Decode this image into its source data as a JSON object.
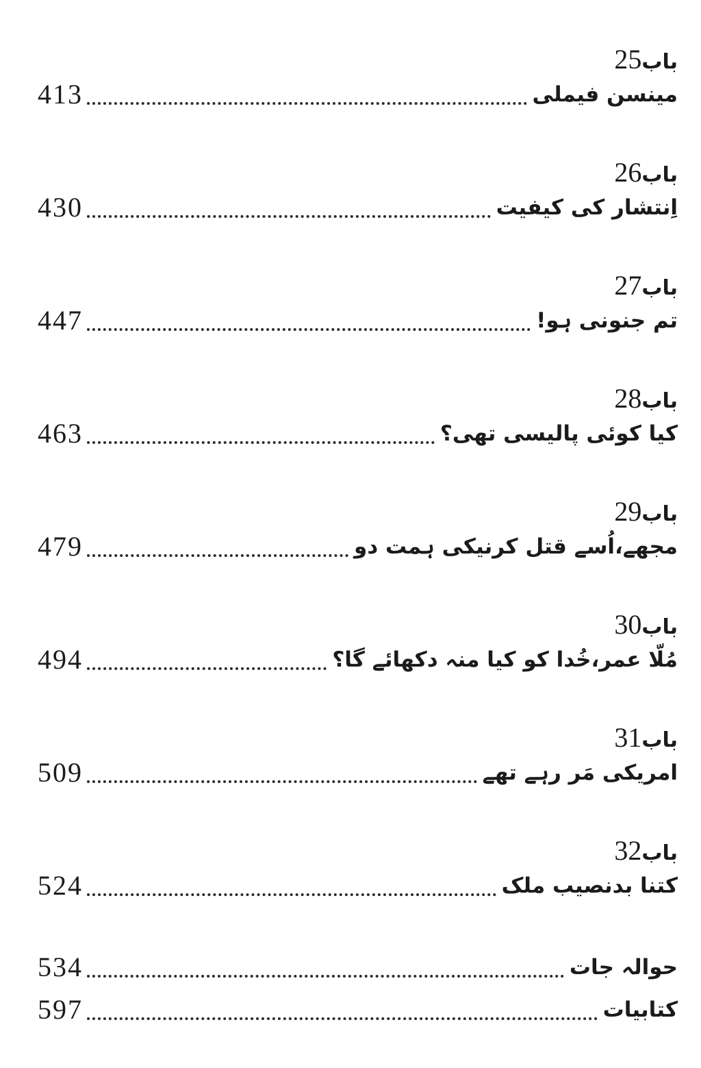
{
  "page": {
    "background": "#ffffff",
    "text_color": "#1b1b1b",
    "dot_color": "#2b2b2b"
  },
  "toc": {
    "chapter_word": "باب",
    "entries": [
      {
        "chapter": "25",
        "title": "مینسن فیملی",
        "page": "413"
      },
      {
        "chapter": "26",
        "title": "اِنتشار کی کیفیت",
        "page": "430"
      },
      {
        "chapter": "27",
        "title": "تم جنونی ہو!",
        "page": "447"
      },
      {
        "chapter": "28",
        "title": "کیا کوئی پالیسی تھی؟",
        "page": "463"
      },
      {
        "chapter": "29",
        "title": "مجھے،اُسے قتل کرنیکی ہمت دو",
        "page": "479"
      },
      {
        "chapter": "30",
        "title": "مُلّا عمر،خُدا کو کیا منہ دکھائے گا؟",
        "page": "494"
      },
      {
        "chapter": "31",
        "title": "امریکی مَر رہے تھے",
        "page": "509"
      },
      {
        "chapter": "32",
        "title": "کتنا بدنصیب ملک",
        "page": "524"
      }
    ],
    "back_matter": [
      {
        "title": "حوالہ جات",
        "page": "534"
      },
      {
        "title": "کتابیات",
        "page": "597"
      }
    ]
  }
}
